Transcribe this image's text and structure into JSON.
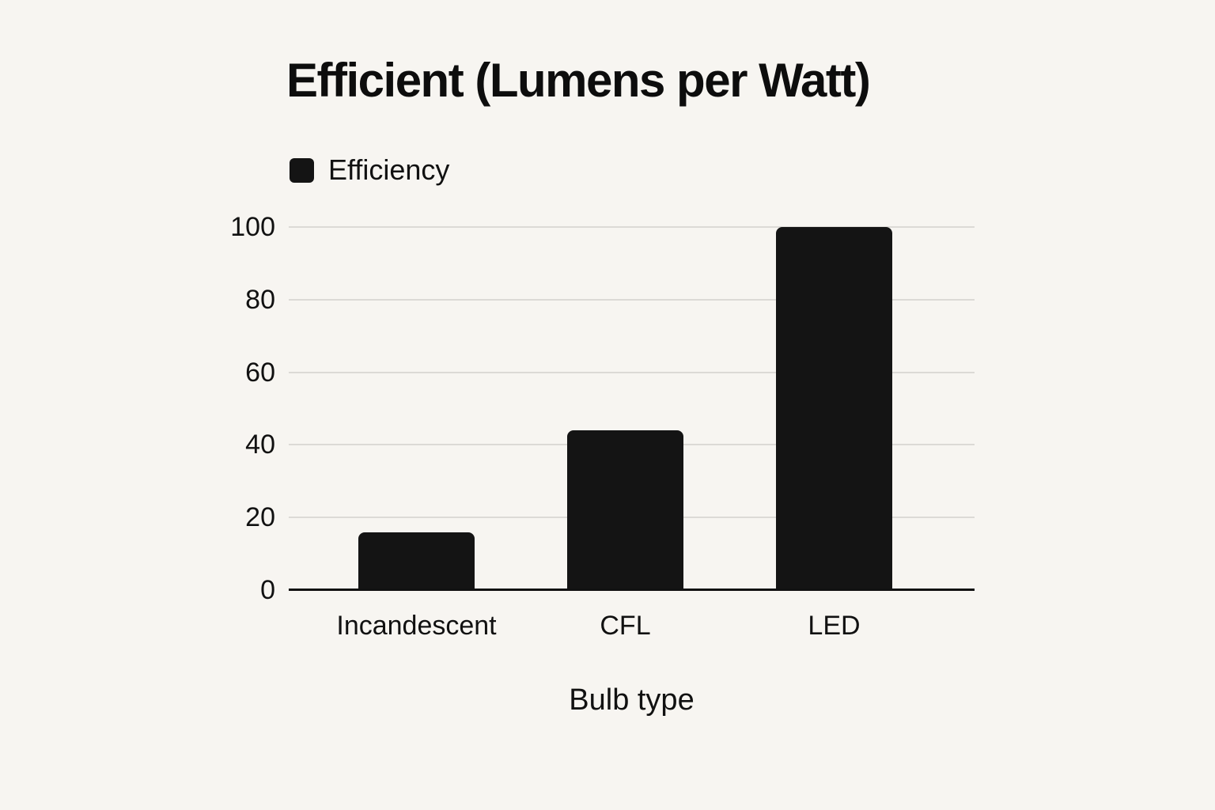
{
  "chart_data": {
    "type": "bar",
    "title": "Efficient (Lumens per Watt)",
    "legend": {
      "label": "Efficiency",
      "position": "top-left",
      "swatch_color": "#141414"
    },
    "categories": [
      "Incandescent",
      "CFL",
      "LED"
    ],
    "values": [
      16,
      44,
      100
    ],
    "xlabel": "Bulb type",
    "ylabel": "",
    "ylim": [
      0,
      100
    ],
    "yticks": [
      0,
      20,
      40,
      60,
      80,
      100
    ],
    "grid": true,
    "colors": {
      "bar": "#141414",
      "background": "#f7f5f1",
      "gridline": "#dcdad6",
      "axis": "#111111",
      "text": "#111111"
    }
  }
}
